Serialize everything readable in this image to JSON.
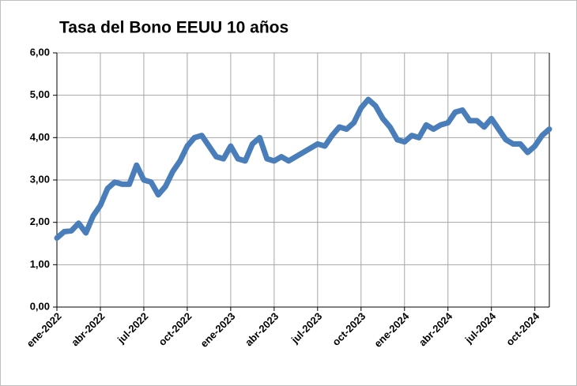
{
  "chart_data": {
    "type": "line",
    "title": "Tasa del Bono EEUU 10 años",
    "categories": [
      "ene-2022",
      null,
      null,
      null,
      null,
      null,
      "abr-2022",
      null,
      null,
      null,
      null,
      null,
      "jul-2022",
      null,
      null,
      null,
      null,
      null,
      "oct-2022",
      null,
      null,
      null,
      null,
      null,
      "ene-2023",
      null,
      null,
      null,
      null,
      null,
      "abr-2023",
      null,
      null,
      null,
      null,
      null,
      "jul-2023",
      null,
      null,
      null,
      null,
      null,
      "oct-2023",
      null,
      null,
      null,
      null,
      null,
      "ene-2024",
      null,
      null,
      null,
      null,
      null,
      "abr-2024",
      null,
      null,
      null,
      null,
      null,
      "jul-2024",
      null,
      null,
      null,
      null,
      null,
      "oct-2024",
      null,
      null
    ],
    "values": [
      1.63,
      1.78,
      1.8,
      1.98,
      1.75,
      2.15,
      2.4,
      2.8,
      2.95,
      2.9,
      2.9,
      3.35,
      3.0,
      2.95,
      2.65,
      2.85,
      3.2,
      3.45,
      3.8,
      4.0,
      4.05,
      3.8,
      3.55,
      3.5,
      3.8,
      3.5,
      3.45,
      3.85,
      4.0,
      3.5,
      3.45,
      3.55,
      3.45,
      3.55,
      3.65,
      3.75,
      3.85,
      3.8,
      4.05,
      4.25,
      4.2,
      4.35,
      4.7,
      4.9,
      4.75,
      4.45,
      4.25,
      3.95,
      3.9,
      4.05,
      4.0,
      4.3,
      4.2,
      4.3,
      4.35,
      4.6,
      4.65,
      4.4,
      4.4,
      4.25,
      4.45,
      4.2,
      3.95,
      3.85,
      3.85,
      3.65,
      3.8,
      4.05,
      4.2
    ],
    "color": "#4a7ebb",
    "ylim": [
      0,
      6
    ],
    "yticks": [
      {
        "value": 0,
        "label": "0,00"
      },
      {
        "value": 1,
        "label": "1,00"
      },
      {
        "value": 2,
        "label": "2,00"
      },
      {
        "value": 3,
        "label": "3,00"
      },
      {
        "value": 4,
        "label": "4,00"
      },
      {
        "value": 5,
        "label": "5,00"
      },
      {
        "value": 6,
        "label": "6,00"
      }
    ],
    "grid": true
  }
}
